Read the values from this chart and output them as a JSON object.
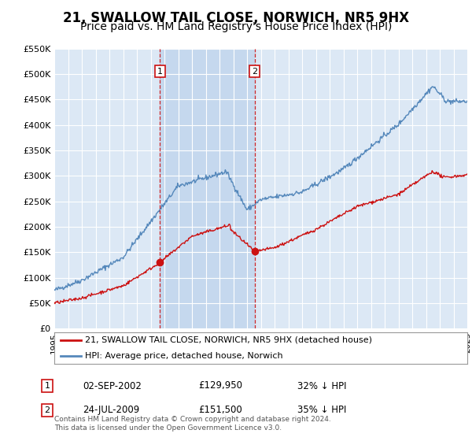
{
  "title": "21, SWALLOW TAIL CLOSE, NORWICH, NR5 9HX",
  "subtitle": "Price paid vs. HM Land Registry's House Price Index (HPI)",
  "ylim": [
    0,
    550000
  ],
  "yticks": [
    0,
    50000,
    100000,
    150000,
    200000,
    250000,
    300000,
    350000,
    400000,
    450000,
    500000,
    550000
  ],
  "ytick_labels": [
    "£0",
    "£50K",
    "£100K",
    "£150K",
    "£200K",
    "£250K",
    "£300K",
    "£350K",
    "£400K",
    "£450K",
    "£500K",
    "£550K"
  ],
  "bg_color": "#dce8f5",
  "grid_color": "#ffffff",
  "shade_color": "#c5d8ee",
  "red_color": "#cc1111",
  "blue_color": "#5588bb",
  "transaction1_year": 2002.67,
  "transaction1_price": 129950,
  "transaction2_year": 2009.56,
  "transaction2_price": 151500,
  "legend_red": "21, SWALLOW TAIL CLOSE, NORWICH, NR5 9HX (detached house)",
  "legend_blue": "HPI: Average price, detached house, Norwich",
  "table": [
    {
      "num": "1",
      "date": "02-SEP-2002",
      "price": "£129,950",
      "hpi": "32% ↓ HPI"
    },
    {
      "num": "2",
      "date": "24-JUL-2009",
      "price": "£151,500",
      "hpi": "35% ↓ HPI"
    }
  ],
  "footer": "Contains HM Land Registry data © Crown copyright and database right 2024.\nThis data is licensed under the Open Government Licence v3.0.",
  "title_fontsize": 12,
  "subtitle_fontsize": 10,
  "xlim_left": 1995,
  "xlim_right": 2025
}
